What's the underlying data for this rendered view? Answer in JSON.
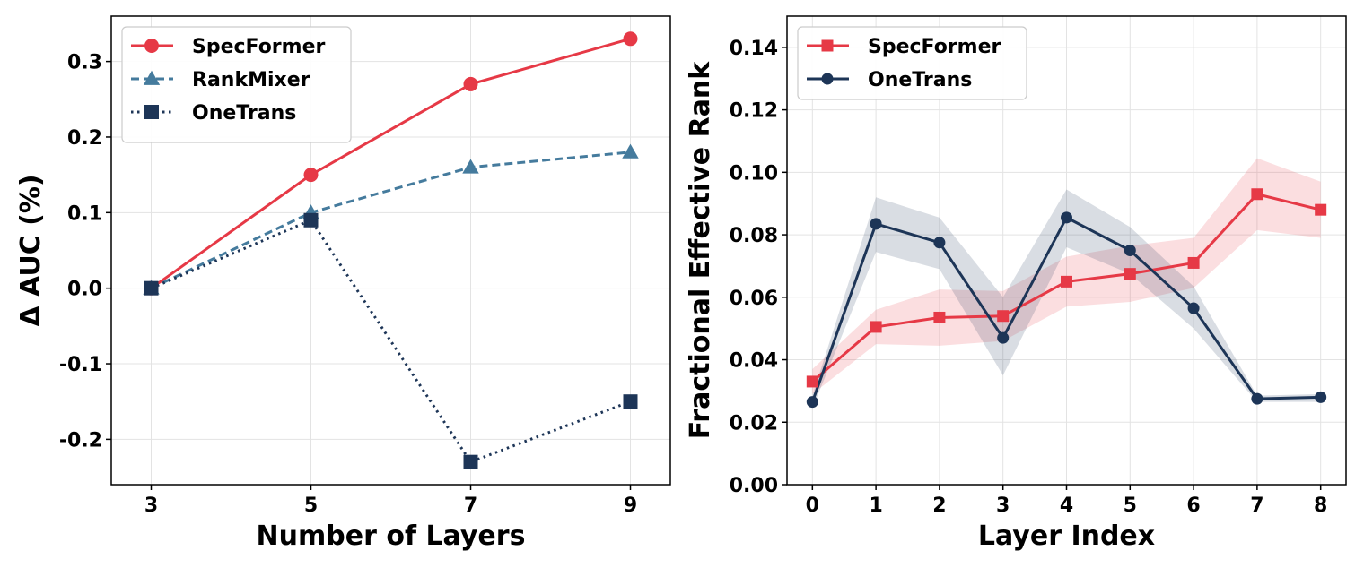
{
  "colors": {
    "specformer": "#e63946",
    "rankmixer": "#457b9d",
    "onetrans": "#1d3557"
  },
  "chart_data": [
    {
      "type": "line",
      "xlabel": "Number of Layers",
      "ylabel": "Δ AUC (%)",
      "x": [
        3,
        5,
        7,
        9
      ],
      "xticks": [
        "3",
        "5",
        "7",
        "9"
      ],
      "yticks": [
        "-0.2",
        "-0.1",
        "0.0",
        "0.1",
        "0.2",
        "0.3"
      ],
      "ylim": [
        -0.26,
        0.36
      ],
      "xlim": [
        2.5,
        9.5
      ],
      "grid": true,
      "legend": "top-left",
      "series": [
        {
          "name": "SpecFormer",
          "values": [
            0.0,
            0.15,
            0.27,
            0.33
          ],
          "color": "#e63946",
          "marker": "circle",
          "linestyle": "solid"
        },
        {
          "name": "RankMixer",
          "values": [
            0.0,
            0.1,
            0.16,
            0.18
          ],
          "color": "#457b9d",
          "marker": "triangle",
          "linestyle": "dashed"
        },
        {
          "name": "OneTrans",
          "values": [
            0.0,
            0.09,
            -0.23,
            -0.15
          ],
          "color": "#1d3557",
          "marker": "square",
          "linestyle": "dotted"
        }
      ]
    },
    {
      "type": "line",
      "xlabel": "Layer Index",
      "ylabel": "Fractional Effective Rank",
      "x": [
        0,
        1,
        2,
        3,
        4,
        5,
        6,
        7,
        8
      ],
      "xticks": [
        "0",
        "1",
        "2",
        "3",
        "4",
        "5",
        "6",
        "7",
        "8"
      ],
      "yticks": [
        "0.00",
        "0.02",
        "0.04",
        "0.06",
        "0.08",
        "0.10",
        "0.12",
        "0.14"
      ],
      "ylim": [
        0,
        0.15
      ],
      "xlim": [
        -0.4,
        8.4
      ],
      "grid": true,
      "legend": "top-left",
      "series": [
        {
          "name": "SpecFormer",
          "values": [
            0.033,
            0.0505,
            0.0535,
            0.054,
            0.065,
            0.0675,
            0.071,
            0.093,
            0.088
          ],
          "lower": [
            0.029,
            0.045,
            0.0445,
            0.046,
            0.057,
            0.0585,
            0.063,
            0.0815,
            0.079
          ],
          "upper": [
            0.037,
            0.056,
            0.0625,
            0.062,
            0.073,
            0.0765,
            0.079,
            0.1045,
            0.097
          ],
          "color": "#e63946",
          "marker": "square",
          "linestyle": "solid"
        },
        {
          "name": "OneTrans",
          "values": [
            0.0265,
            0.0835,
            0.0775,
            0.047,
            0.0855,
            0.075,
            0.0565,
            0.0275,
            0.028
          ],
          "lower": [
            0.0245,
            0.0745,
            0.069,
            0.035,
            0.076,
            0.0675,
            0.05,
            0.0265,
            0.0265
          ],
          "upper": [
            0.0285,
            0.092,
            0.0855,
            0.06,
            0.0945,
            0.0825,
            0.0635,
            0.0285,
            0.029
          ],
          "color": "#1d3557",
          "marker": "circle",
          "linestyle": "solid"
        }
      ]
    }
  ]
}
